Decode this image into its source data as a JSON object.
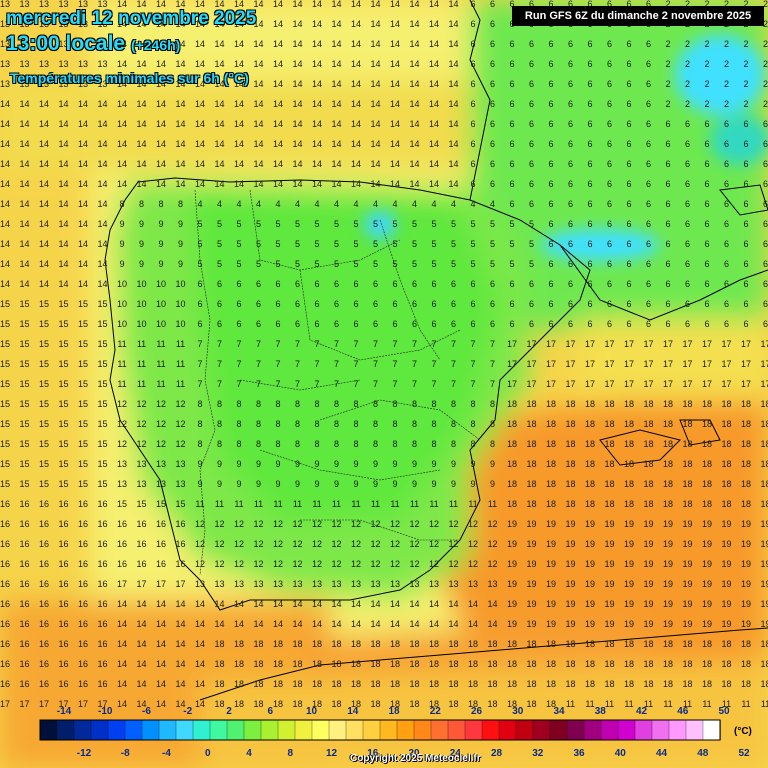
{
  "header": {
    "date": "mercredi 12 novembre 2025",
    "time": "13:00 locale",
    "offset": "(+246h)",
    "subtitle": "Températures minimales sur 6h (°C)",
    "run": "Run GFS 6Z du dimanche 2 novembre 2025"
  },
  "legend": {
    "unit": "(°C)",
    "top_labels": [
      "-14",
      "-10",
      "-6",
      "-2",
      "2",
      "6",
      "10",
      "14",
      "18",
      "22",
      "26",
      "30",
      "34",
      "38",
      "42",
      "46",
      "50"
    ],
    "bottom_labels": [
      "-12",
      "-8",
      "-4",
      "0",
      "4",
      "8",
      "12",
      "16",
      "20",
      "24",
      "28",
      "32",
      "36",
      "40",
      "44",
      "48",
      "52"
    ],
    "colors": [
      "#00103a",
      "#001e6a",
      "#002a9a",
      "#0030c8",
      "#0040f0",
      "#0060ff",
      "#0090ff",
      "#20b8ff",
      "#40d8ff",
      "#30f0d0",
      "#40f8a0",
      "#50f070",
      "#7cf040",
      "#a8f030",
      "#d0f030",
      "#f0f040",
      "#ffff60",
      "#fff080",
      "#ffe060",
      "#ffd040",
      "#ffb820",
      "#ffa010",
      "#ff8818",
      "#ff7030",
      "#ff5838",
      "#ff3840",
      "#ff1010",
      "#e00010",
      "#c00010",
      "#a00020",
      "#800020",
      "#800050",
      "#a00080",
      "#c000b0",
      "#d000d0",
      "#e040e0",
      "#f070f0",
      "#ff98ff",
      "#ffc0ff",
      "#ffffff"
    ]
  },
  "copyright": "Copyright 2025 Meteociel.fr"
}
